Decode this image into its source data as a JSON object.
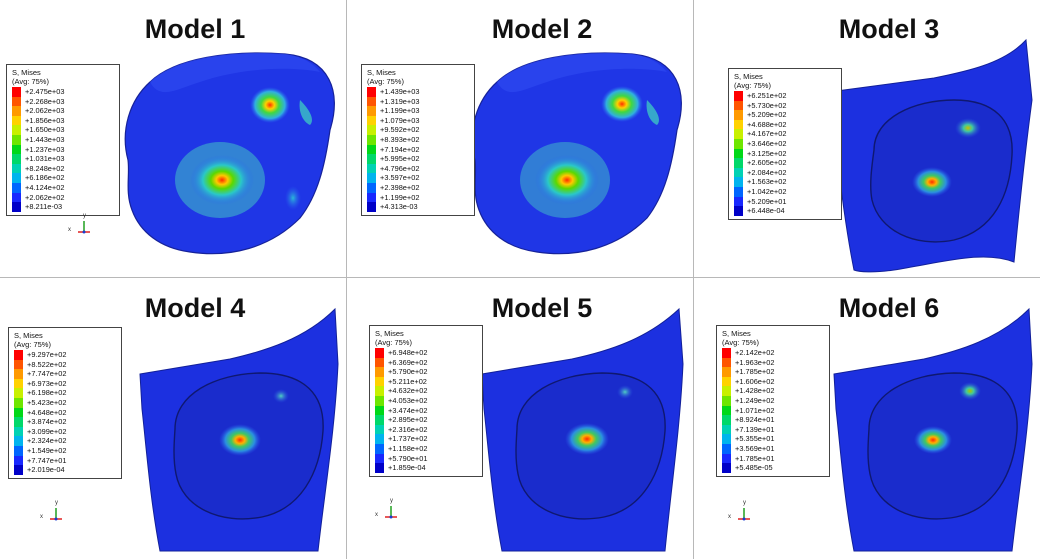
{
  "legend_header": [
    "S, Mises",
    "(Avg: 75%)"
  ],
  "colors": [
    "#ff0000",
    "#ff5500",
    "#ff9a00",
    "#ffd200",
    "#c8f000",
    "#6ee600",
    "#00d818",
    "#00d86a",
    "#00d2b4",
    "#00b4ee",
    "#0066ff",
    "#1828ff",
    "#0000c8"
  ],
  "axis_labels": {
    "x": "x",
    "y": "y"
  },
  "models": [
    {
      "title": "Model 1",
      "legend": [
        "+2.475e+03",
        "+2.268e+03",
        "+2.062e+03",
        "+1.856e+03",
        "+1.650e+03",
        "+1.443e+03",
        "+1.237e+03",
        "+1.031e+03",
        "+8.248e+02",
        "+6.186e+02",
        "+4.124e+02",
        "+2.062e+02",
        "+8.211e-03"
      ]
    },
    {
      "title": "Model 2",
      "legend": [
        "+1.439e+03",
        "+1.319e+03",
        "+1.199e+03",
        "+1.079e+03",
        "+9.592e+02",
        "+8.393e+02",
        "+7.194e+02",
        "+5.995e+02",
        "+4.796e+02",
        "+3.597e+02",
        "+2.398e+02",
        "+1.199e+02",
        "+4.313e-03"
      ]
    },
    {
      "title": "Model 3",
      "legend": [
        "+6.251e+02",
        "+5.730e+02",
        "+5.209e+02",
        "+4.688e+02",
        "+4.167e+02",
        "+3.646e+02",
        "+3.125e+02",
        "+2.605e+02",
        "+2.084e+02",
        "+1.563e+02",
        "+1.042e+02",
        "+5.209e+01",
        "+6.448e-04"
      ]
    },
    {
      "title": "Model 4",
      "legend": [
        "+9.297e+02",
        "+8.522e+02",
        "+7.747e+02",
        "+6.973e+02",
        "+6.198e+02",
        "+5.423e+02",
        "+4.648e+02",
        "+3.874e+02",
        "+3.099e+02",
        "+2.324e+02",
        "+1.549e+02",
        "+7.747e+01",
        "+2.019e-04"
      ]
    },
    {
      "title": "Model 5",
      "legend": [
        "+6.948e+02",
        "+6.369e+02",
        "+5.790e+02",
        "+5.211e+02",
        "+4.632e+02",
        "+4.053e+02",
        "+3.474e+02",
        "+2.895e+02",
        "+2.316e+02",
        "+1.737e+02",
        "+1.158e+02",
        "+5.790e+01",
        "+1.859e-04"
      ]
    },
    {
      "title": "Model 6",
      "legend": [
        "+2.142e+02",
        "+1.963e+02",
        "+1.785e+02",
        "+1.606e+02",
        "+1.428e+02",
        "+1.249e+02",
        "+1.071e+02",
        "+8.924e+01",
        "+7.139e+01",
        "+5.355e+01",
        "+3.569e+01",
        "+1.785e+01",
        "+5.485e-05"
      ]
    }
  ]
}
